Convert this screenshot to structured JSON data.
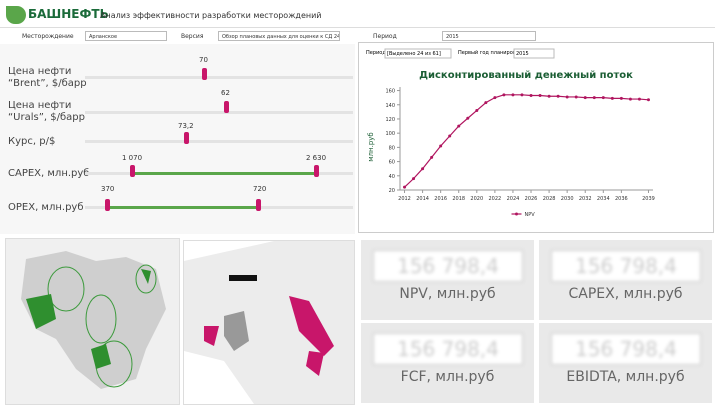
{
  "header": {
    "logo": "БАШНЕФТЬ",
    "title": "Анализ эффективности разработки месторождений"
  },
  "filters": [
    {
      "label": "Месторождение",
      "value": "Арланское"
    },
    {
      "label": "Версия",
      "value": "Обзор плановых данных для оценки к СД 24.04.2015 (це"
    },
    {
      "label": "Период",
      "value": "2015"
    }
  ],
  "sliders": [
    {
      "label": "Цена нефти\n“Brent”, $/барр",
      "value": "70"
    },
    {
      "label": "Цена нефти\n“Urals”, $/барр",
      "value": "62"
    },
    {
      "label": "Курс, р/$",
      "value": "73,2"
    }
  ],
  "ranges": [
    {
      "label": "CAPEX, млн.руб",
      "min": "1 070",
      "max": "2 630"
    },
    {
      "label": "OPEX, млн.руб",
      "min": "370",
      "max": "720"
    }
  ],
  "chart_controls": [
    {
      "label": "Период:",
      "value": "[Выделено 24 из 61]"
    },
    {
      "label": "Первый год планирования:",
      "value": "2015"
    }
  ],
  "chart_data": {
    "type": "line",
    "title": "Дисконтированный денежный поток",
    "y_label": "млн.руб",
    "x": [
      2012,
      2013,
      2014,
      2015,
      2016,
      2017,
      2018,
      2019,
      2020,
      2021,
      2022,
      2023,
      2024,
      2025,
      2026,
      2027,
      2028,
      2029,
      2030,
      2031,
      2032,
      2033,
      2034,
      2035,
      2036,
      2037,
      2038,
      2039
    ],
    "series": [
      {
        "name": "NPV",
        "color": "#b0155f",
        "values": [
          24,
          36,
          50,
          66,
          82,
          96,
          110,
          121,
          132,
          143,
          150,
          154,
          154,
          154,
          153,
          153,
          152,
          152,
          151,
          151,
          150,
          150,
          150,
          149,
          149,
          148,
          148,
          147
        ]
      }
    ],
    "xlim": [
      2011.5,
      2039.5
    ],
    "xticks": [
      2012,
      2014,
      2016,
      2018,
      2020,
      2022,
      2024,
      2026,
      2028,
      2030,
      2032,
      2034,
      2036,
      2039
    ],
    "ylim": [
      20,
      165
    ],
    "yticks": [
      20,
      40,
      60,
      80,
      100,
      120,
      140,
      160
    ],
    "grid": false,
    "legend": "bottom"
  },
  "kpis": [
    {
      "value": "156 798,4",
      "label": "NPV, млн.руб"
    },
    {
      "value": "156 798,4",
      "label": "CAPEX, млн.руб"
    },
    {
      "value": "156 798,4",
      "label": "FCF, млн.руб"
    },
    {
      "value": "156 798,4",
      "label": "EBIDTA, млн.руб"
    }
  ]
}
